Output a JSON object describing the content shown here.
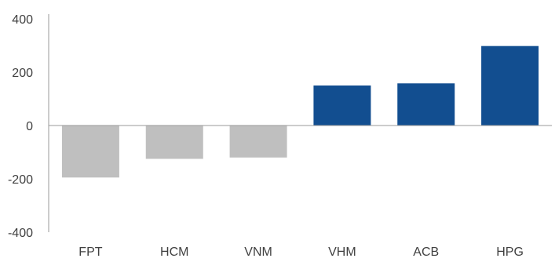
{
  "chart_data": {
    "type": "bar",
    "categories": [
      "FPT",
      "HCM",
      "VNM",
      "VHM",
      "ACB",
      "HPG"
    ],
    "values": [
      -195,
      -125,
      -120,
      150,
      158,
      298
    ],
    "ylim": [
      -400,
      400
    ],
    "yticks": [
      "400",
      "200",
      "0",
      "-200",
      "-400"
    ],
    "ytick_values": [
      400,
      200,
      0,
      -200,
      -400
    ],
    "grid": false,
    "legend": "none",
    "colors": {
      "positive": "#124E90",
      "negative": "#BFBFBF",
      "axis": "#999999",
      "text": "#404040"
    }
  }
}
